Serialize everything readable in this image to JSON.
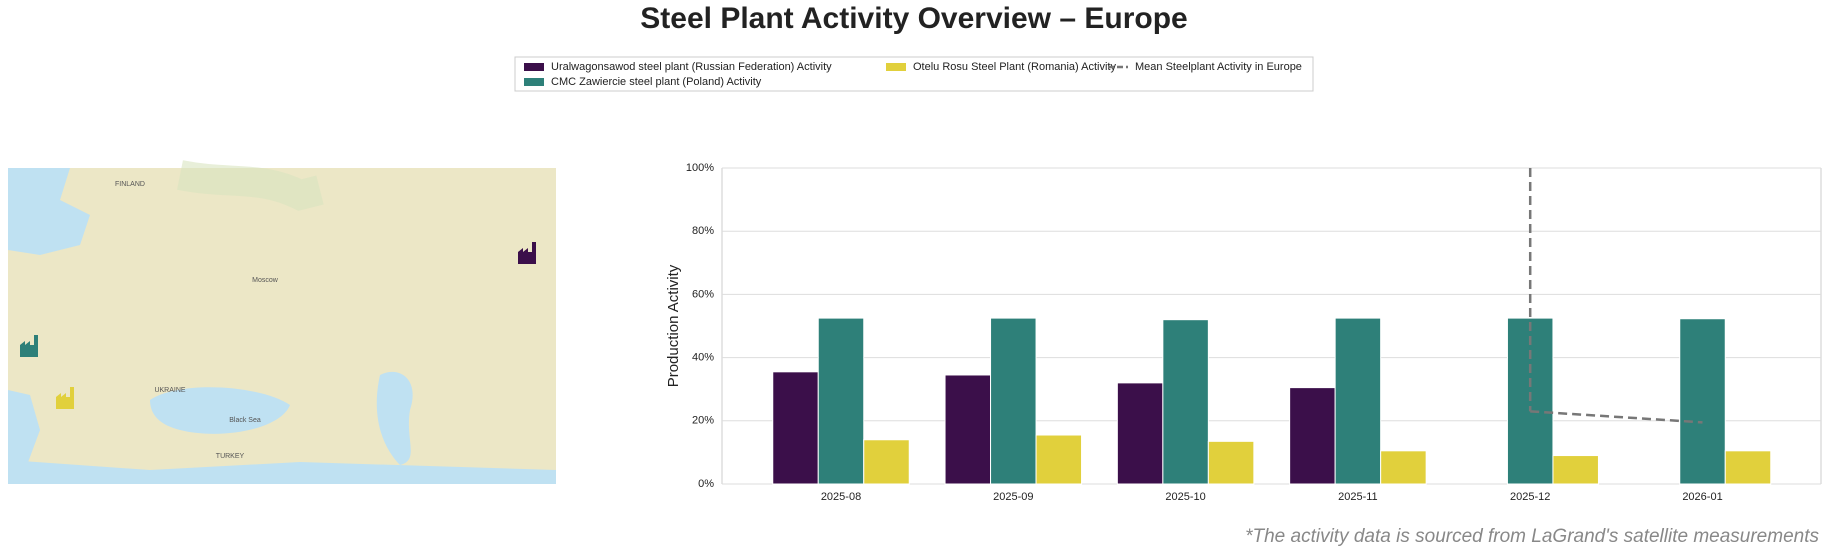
{
  "chart_data": {
    "type": "bar",
    "title": "Steel Plant Activity Overview – Europe",
    "ylabel": "Production Activity",
    "footnote": "*The activity data is sourced from LaGrand's satellite measurements",
    "categories": [
      "2025-08",
      "2025-09",
      "2025-10",
      "2025-11",
      "2025-12",
      "2026-01"
    ],
    "series": [
      {
        "name": "Uralwagonsawod steel plant (Russian Federation) Activity",
        "color": "#3b0f4a",
        "values": [
          35.5,
          34.5,
          32,
          30.5,
          null,
          null
        ]
      },
      {
        "name": "CMC Zawiercie steel plant (Poland) Activity",
        "color": "#2e8079",
        "values": [
          52.5,
          52.5,
          52,
          52.5,
          52.5,
          52.3
        ]
      },
      {
        "name": "Otelu Rosu Steel Plant (Romania) Activity",
        "color": "#e1d03c",
        "values": [
          14,
          15.5,
          13.5,
          10.5,
          9,
          10.5
        ]
      },
      {
        "name": "Mean Steelplant Activity in Europe",
        "color": "#777777",
        "type": "line",
        "dashed": true,
        "values": [
          null,
          null,
          null,
          null,
          23,
          19.5
        ]
      }
    ],
    "vertical_marker": "2025-12",
    "ylim": [
      0,
      100
    ],
    "yticks": [
      {
        "value": 0,
        "label": "0%"
      },
      {
        "value": 20,
        "label": "20%"
      },
      {
        "value": 40,
        "label": "40%"
      },
      {
        "value": 60,
        "label": "60%"
      },
      {
        "value": 80,
        "label": "80%"
      },
      {
        "value": 100,
        "label": "100%"
      }
    ],
    "grid": true,
    "legend": "top",
    "map_labels": [
      "FINLAND",
      "Moscow",
      "UKRAINE",
      "TURKEY",
      "Black Sea"
    ]
  }
}
